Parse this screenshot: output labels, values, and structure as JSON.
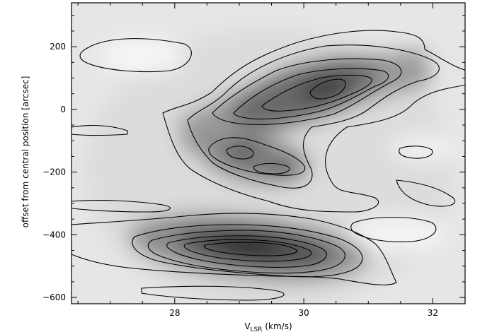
{
  "chart_data": {
    "type": "heatmap",
    "title": "",
    "xlabel_main": "V",
    "xlabel_sub": "LSR",
    "xlabel_unit": " (km/s)",
    "ylabel": "offset from central position [arcsec]",
    "xlim": [
      26.4,
      32.5
    ],
    "ylim": [
      -620,
      340
    ],
    "x_ticks": [
      28,
      30,
      32
    ],
    "x_tick_labels": [
      "28",
      "30",
      "32"
    ],
    "y_ticks": [
      -600,
      -400,
      -200,
      0,
      200
    ],
    "y_tick_labels": [
      "−600",
      "−400",
      "−200",
      "0",
      "200"
    ],
    "colormap": "grayscale (white = low, black = high)",
    "contours": "black solid lines",
    "grid": false,
    "emission_peaks": [
      {
        "velocity_kms": 30.3,
        "offset_arcsec": 60,
        "relative_intensity": 0.88,
        "note": "upper ridge peak"
      },
      {
        "velocity_kms": 29.0,
        "offset_arcsec": -130,
        "relative_intensity": 0.55,
        "note": "middle clump"
      },
      {
        "velocity_kms": 29.7,
        "offset_arcsec": -190,
        "relative_intensity": 0.5,
        "note": "middle clump"
      },
      {
        "velocity_kms": 29.2,
        "offset_arcsec": -430,
        "relative_intensity": 1.0,
        "note": "lower ridge peak"
      }
    ]
  }
}
